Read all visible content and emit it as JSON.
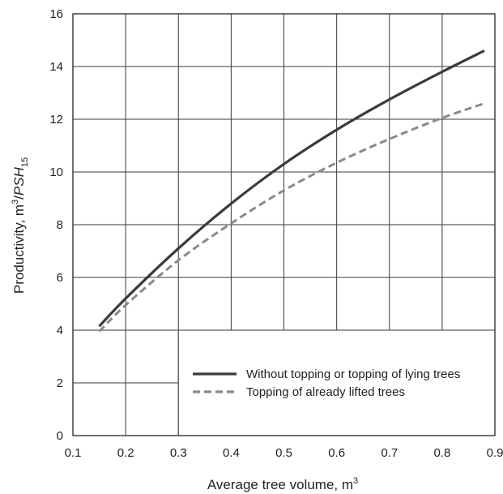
{
  "chart_data": {
    "type": "line",
    "xlabel": {
      "text": "Average tree volume, m",
      "sup": "3"
    },
    "ylabel": {
      "text": "Productivity, m",
      "sup": "3",
      "slash": "/",
      "italic": "PSH",
      "sub": "15"
    },
    "xlim": [
      0.1,
      0.9
    ],
    "ylim": [
      0,
      16
    ],
    "x_ticks": [
      "0.1",
      "0.2",
      "0.3",
      "0.4",
      "0.5",
      "0.6",
      "0.7",
      "0.8",
      "0.9"
    ],
    "y_ticks": [
      "0",
      "2",
      "4",
      "6",
      "8",
      "10",
      "12",
      "14",
      "16"
    ],
    "grid": true,
    "legend_position": "bottom-right",
    "series": [
      {
        "name": "Without topping or topping of lying trees",
        "color": "#3a3a3a",
        "style": "solid",
        "x": [
          0.15,
          0.2,
          0.3,
          0.4,
          0.5,
          0.6,
          0.7,
          0.8,
          0.88
        ],
        "y": [
          4.15,
          5.2,
          7.1,
          8.8,
          10.3,
          11.6,
          12.75,
          13.8,
          14.6
        ]
      },
      {
        "name": "Topping of already lifted trees",
        "color": "#8a8a8a",
        "style": "dashed",
        "x": [
          0.15,
          0.2,
          0.3,
          0.4,
          0.5,
          0.6,
          0.7,
          0.8,
          0.88
        ],
        "y": [
          3.95,
          4.95,
          6.65,
          8.05,
          9.3,
          10.35,
          11.25,
          12.05,
          12.6
        ]
      }
    ]
  }
}
